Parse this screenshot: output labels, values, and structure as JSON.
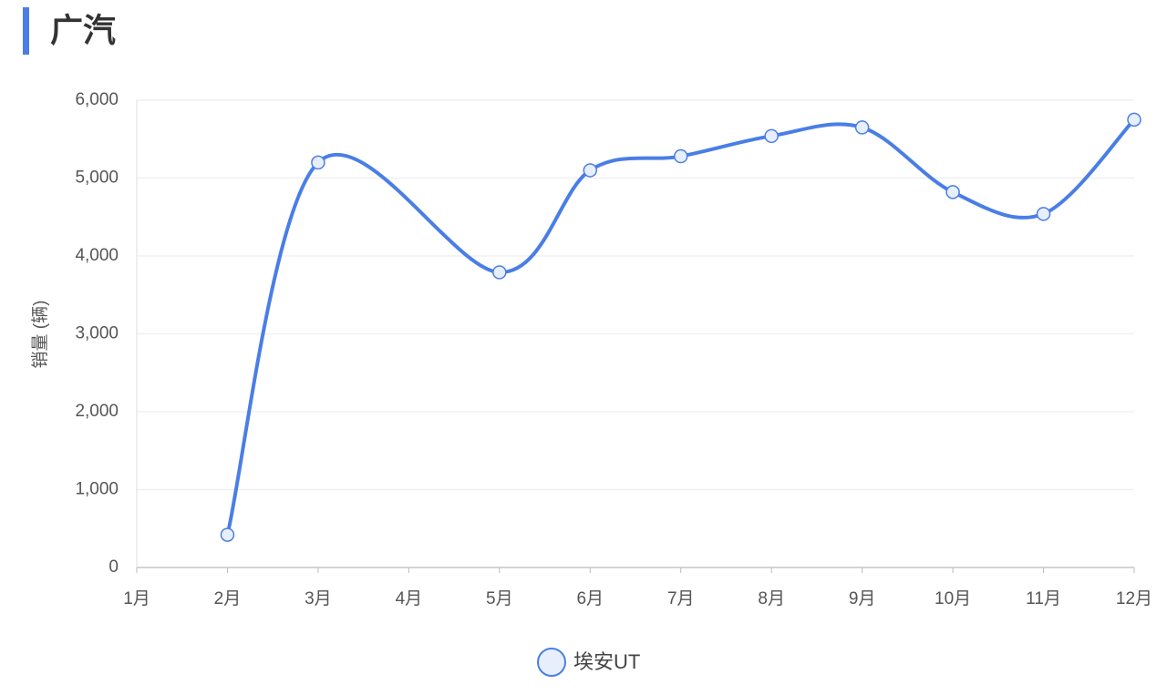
{
  "title": "广汽",
  "chart_data": {
    "type": "line",
    "y_label": "销量 (辆)",
    "categories": [
      "1月",
      "2月",
      "3月",
      "4月",
      "5月",
      "6月",
      "7月",
      "8月",
      "9月",
      "10月",
      "11月",
      "12月"
    ],
    "series": [
      {
        "name": "埃安UT",
        "color": "#4a7ee6",
        "values": [
          null,
          420,
          5200,
          null,
          3790,
          5100,
          5280,
          5540,
          5650,
          4820,
          4540,
          5750
        ]
      }
    ],
    "ylim": [
      0,
      6000
    ],
    "yticks": [
      0,
      {
        "value": 1000,
        "label": "1,000"
      },
      {
        "value": 2000,
        "label": "2,000"
      },
      {
        "value": 3000,
        "label": "3,000"
      },
      {
        "value": 4000,
        "label": "4,000"
      },
      {
        "value": 5000,
        "label": "5,000"
      },
      {
        "value": 6000,
        "label": "6,000"
      }
    ],
    "grid": true,
    "smooth": true,
    "connect_nulls": true,
    "legend": "bottom"
  }
}
